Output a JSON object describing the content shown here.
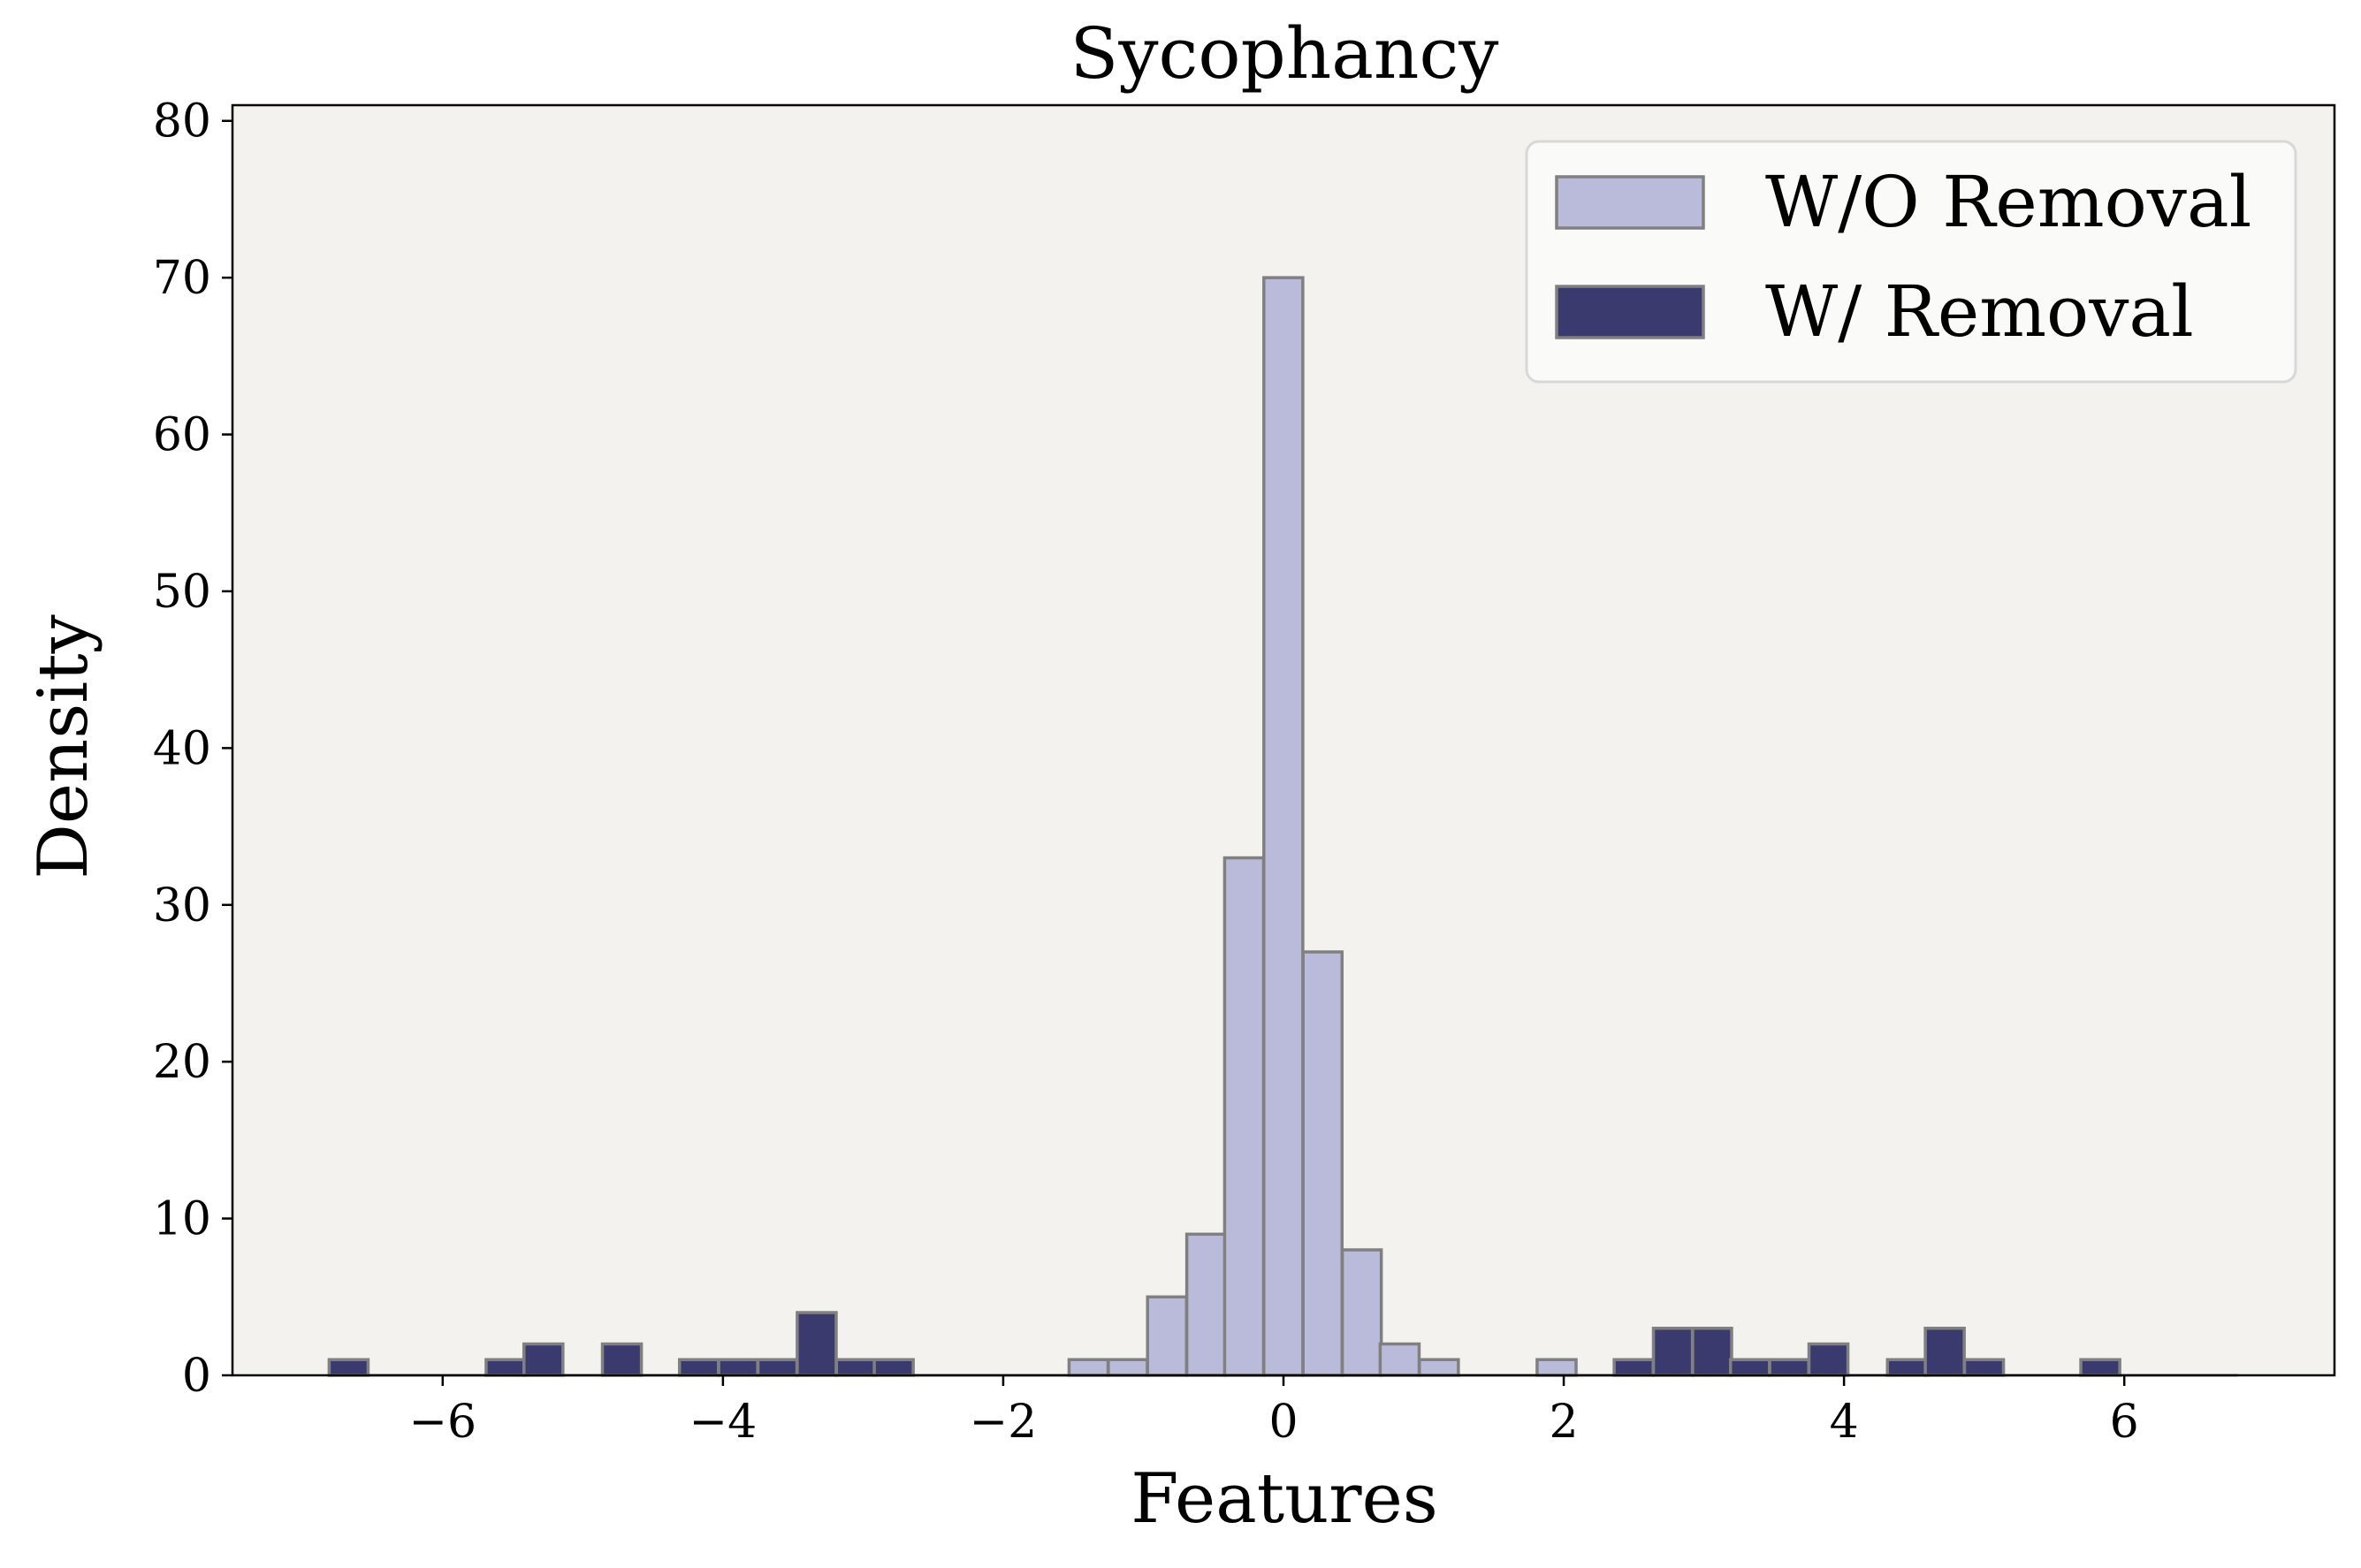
{
  "chart_data": {
    "type": "bar",
    "title": "Sycophancy",
    "xlabel": "Features",
    "ylabel": "Density",
    "xlim": [
      -7.5,
      7.5
    ],
    "ylim": [
      0,
      81
    ],
    "xticks": [
      -6,
      -4,
      -2,
      0,
      2,
      4,
      6
    ],
    "xtick_labels": [
      "−6",
      "−4",
      "−2",
      "0",
      "2",
      "4",
      "6"
    ],
    "yticks": [
      0,
      10,
      20,
      30,
      40,
      50,
      60,
      70,
      80
    ],
    "ytick_labels": [
      "0",
      "10",
      "20",
      "30",
      "40",
      "50",
      "60",
      "70",
      "80"
    ],
    "bin_width": 0.278,
    "grid": false,
    "legend_position": "top-right",
    "background_color": "#f3f2ee",
    "edge_color": "#808080",
    "series": [
      {
        "name": "W/O Removal",
        "color": "#babbdb",
        "bins": [
          {
            "x0": -1.53,
            "value": 1
          },
          {
            "x0": -1.25,
            "value": 1
          },
          {
            "x0": -0.97,
            "value": 5
          },
          {
            "x0": -0.69,
            "value": 9
          },
          {
            "x0": -0.42,
            "value": 33
          },
          {
            "x0": -0.14,
            "value": 70
          },
          {
            "x0": 0.14,
            "value": 27
          },
          {
            "x0": 0.42,
            "value": 8
          },
          {
            "x0": 0.69,
            "value": 2
          },
          {
            "x0": 0.97,
            "value": 1
          },
          {
            "x0": 1.81,
            "value": 1
          }
        ]
      },
      {
        "name": "W/ Removal",
        "color": "#3b3a6e",
        "bins": [
          {
            "x0": -6.81,
            "value": 1
          },
          {
            "x0": -5.69,
            "value": 1
          },
          {
            "x0": -5.42,
            "value": 2
          },
          {
            "x0": -4.86,
            "value": 2
          },
          {
            "x0": -4.31,
            "value": 1
          },
          {
            "x0": -4.03,
            "value": 1
          },
          {
            "x0": -3.75,
            "value": 1
          },
          {
            "x0": -3.47,
            "value": 4
          },
          {
            "x0": -3.19,
            "value": 1
          },
          {
            "x0": -2.92,
            "value": 1
          },
          {
            "x0": 2.36,
            "value": 1
          },
          {
            "x0": 2.64,
            "value": 3
          },
          {
            "x0": 2.92,
            "value": 3
          },
          {
            "x0": 3.19,
            "value": 1
          },
          {
            "x0": 3.47,
            "value": 1
          },
          {
            "x0": 3.75,
            "value": 2
          },
          {
            "x0": 4.31,
            "value": 1
          },
          {
            "x0": 4.58,
            "value": 3
          },
          {
            "x0": 4.86,
            "value": 1
          },
          {
            "x0": 5.69,
            "value": 1
          }
        ]
      }
    ]
  }
}
